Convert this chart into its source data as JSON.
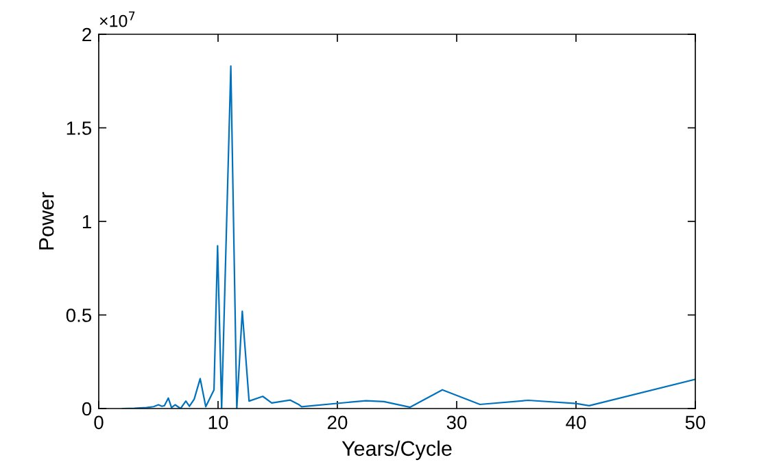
{
  "chart_data": {
    "type": "line",
    "xlabel": "Years/Cycle",
    "ylabel": "Power",
    "annotations": [
      "×10$^{7}$"
    ],
    "series": [
      {
        "color": "#0072bd",
        "x": [
          2,
          3,
          4,
          4.6,
          5,
          5.3,
          5.5,
          5.83,
          6.1,
          6.4,
          6.86,
          7.3,
          7.6,
          8.0,
          8.5,
          8.97,
          9.66,
          9.96,
          10.3,
          11.07,
          11.57,
          12.03,
          12.6,
          13.75,
          14.5,
          16.05,
          16.8,
          17,
          22.4,
          23.9,
          26.1,
          28.8,
          31.95,
          36.0,
          40.0,
          41.1,
          50
        ],
        "values": [
          0,
          0.001,
          0.005,
          0.01,
          0.02,
          0.012,
          0.015,
          0.056,
          0.005,
          0.02,
          0,
          0.04,
          0.012,
          0.05,
          0.16,
          0.01,
          0.1,
          0.87,
          0,
          1.83,
          0,
          0.52,
          0.04,
          0.065,
          0.03,
          0.045,
          0.02,
          0.01,
          0.042,
          0.037,
          0.007,
          0.1,
          0.022,
          0.044,
          0.027,
          0.015,
          0.156
        ]
      }
    ],
    "xlim": [
      0,
      50
    ],
    "xticks": [
      0,
      10,
      20,
      30,
      40,
      50
    ],
    "ylim": [
      0,
      2
    ],
    "yticks": [
      0,
      0.5,
      1,
      1.5,
      2
    ],
    "grid": false,
    "legend": false,
    "marker": "none",
    "line_style": "solid"
  }
}
